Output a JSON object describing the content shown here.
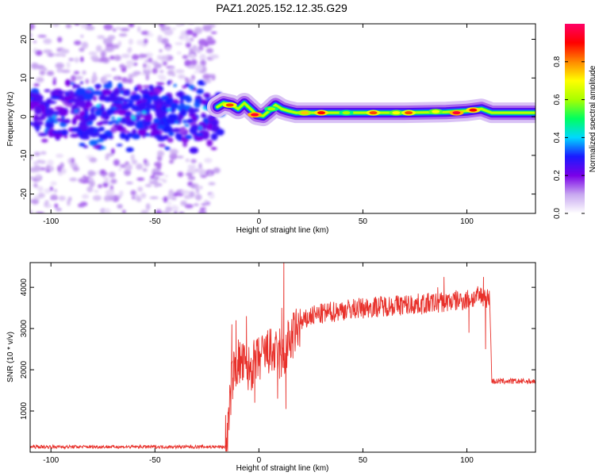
{
  "title": "PAZ1.2025.152.12.35.G29",
  "chart_data": [
    {
      "type": "heatmap",
      "xlabel": "Height of straight line (km)",
      "ylabel": "Frequency (Hz)",
      "xlim": [
        -110,
        133
      ],
      "ylim": [
        -25,
        24
      ],
      "xticks": [
        -100,
        -50,
        0,
        50,
        100
      ],
      "yticks": [
        -20,
        -10,
        0,
        10,
        20
      ],
      "colorbar": {
        "label": "Normalized spectral amplitude",
        "range": [
          0,
          1
        ],
        "ticks": [
          0.0,
          0.2,
          0.4,
          0.6,
          0.8
        ],
        "colors": [
          "#ffffff",
          "#c8a8f0",
          "#7a00e8",
          "#1a1aff",
          "#00d8ff",
          "#00ff60",
          "#a8ff00",
          "#ffff00",
          "#ff8800",
          "#ff0000",
          "#ff0066"
        ]
      },
      "ridge": [
        {
          "x": -20,
          "y": 2.5
        },
        {
          "x": -17,
          "y": 3.5
        },
        {
          "x": -13,
          "y": 3
        },
        {
          "x": -10,
          "y": 2
        },
        {
          "x": -7,
          "y": 3.5
        },
        {
          "x": -4,
          "y": 2
        },
        {
          "x": -1,
          "y": 0.5
        },
        {
          "x": 2,
          "y": 0.2
        },
        {
          "x": 5,
          "y": 1.5
        },
        {
          "x": 8,
          "y": 3
        },
        {
          "x": 11,
          "y": 2
        },
        {
          "x": 14,
          "y": 1.5
        },
        {
          "x": 18,
          "y": 1
        },
        {
          "x": 30,
          "y": 1
        },
        {
          "x": 50,
          "y": 1
        },
        {
          "x": 70,
          "y": 1
        },
        {
          "x": 90,
          "y": 1.2
        },
        {
          "x": 100,
          "y": 1.5
        },
        {
          "x": 107,
          "y": 2
        },
        {
          "x": 112,
          "y": 1
        },
        {
          "x": 133,
          "y": 1
        }
      ],
      "hotspots": [
        {
          "x": -14,
          "y": 3,
          "v": 0.85
        },
        {
          "x": -2,
          "y": 0.5,
          "v": 0.95
        },
        {
          "x": 6,
          "y": 2,
          "v": 0.6
        },
        {
          "x": 22,
          "y": 1,
          "v": 0.75
        },
        {
          "x": 30,
          "y": 1,
          "v": 0.9
        },
        {
          "x": 42,
          "y": 1,
          "v": 0.6
        },
        {
          "x": 55,
          "y": 1,
          "v": 0.85
        },
        {
          "x": 66,
          "y": 1,
          "v": 0.7
        },
        {
          "x": 72,
          "y": 1,
          "v": 0.85
        },
        {
          "x": 85,
          "y": 1.3,
          "v": 0.7
        },
        {
          "x": 95,
          "y": 1,
          "v": 0.95
        },
        {
          "x": 103,
          "y": 1.7,
          "v": 0.9
        }
      ]
    },
    {
      "type": "line",
      "xlabel": "Height of straight line (km)",
      "ylabel": "SNR (10 * v/v)",
      "xlim": [
        -110,
        133
      ],
      "ylim": [
        0,
        4600
      ],
      "xticks": [
        -100,
        -50,
        0,
        50,
        100
      ],
      "yticks": [
        1000,
        2000,
        3000,
        4000
      ],
      "series": [
        {
          "color": "#e8302a",
          "profile": [
            {
              "x": -110,
              "y": 130
            },
            {
              "x": -16,
              "y": 130
            },
            {
              "x": -15,
              "y": 450
            },
            {
              "x": -13,
              "y": 1800
            },
            {
              "x": -10,
              "y": 2200
            },
            {
              "x": -5,
              "y": 2000
            },
            {
              "x": 0,
              "y": 2250
            },
            {
              "x": 5,
              "y": 2450
            },
            {
              "x": 10,
              "y": 2300
            },
            {
              "x": 12,
              "y": 2300
            },
            {
              "x": 15,
              "y": 2700
            },
            {
              "x": 20,
              "y": 3100
            },
            {
              "x": 25,
              "y": 3300
            },
            {
              "x": 40,
              "y": 3450
            },
            {
              "x": 60,
              "y": 3550
            },
            {
              "x": 80,
              "y": 3600
            },
            {
              "x": 100,
              "y": 3700
            },
            {
              "x": 108,
              "y": 3800
            },
            {
              "x": 111,
              "y": 3700
            },
            {
              "x": 112,
              "y": 1720
            },
            {
              "x": 133,
              "y": 1720
            }
          ],
          "spikes": [
            {
              "x": -16,
              "y": 900
            },
            {
              "x": -13,
              "y": 3100
            },
            {
              "x": -11,
              "y": 3200
            },
            {
              "x": -6,
              "y": 3300
            },
            {
              "x": -2,
              "y": 1200
            },
            {
              "x": 9,
              "y": 1300
            },
            {
              "x": 10,
              "y": 3000
            },
            {
              "x": 11,
              "y": 3500
            },
            {
              "x": 12,
              "y": 4650
            },
            {
              "x": 13,
              "y": 1050
            },
            {
              "x": 14,
              "y": 3200
            },
            {
              "x": 86,
              "y": 4000
            },
            {
              "x": 89,
              "y": 4250
            },
            {
              "x": 101,
              "y": 2900
            },
            {
              "x": 108,
              "y": 4250
            },
            {
              "x": 109,
              "y": 2500
            }
          ]
        }
      ]
    }
  ]
}
